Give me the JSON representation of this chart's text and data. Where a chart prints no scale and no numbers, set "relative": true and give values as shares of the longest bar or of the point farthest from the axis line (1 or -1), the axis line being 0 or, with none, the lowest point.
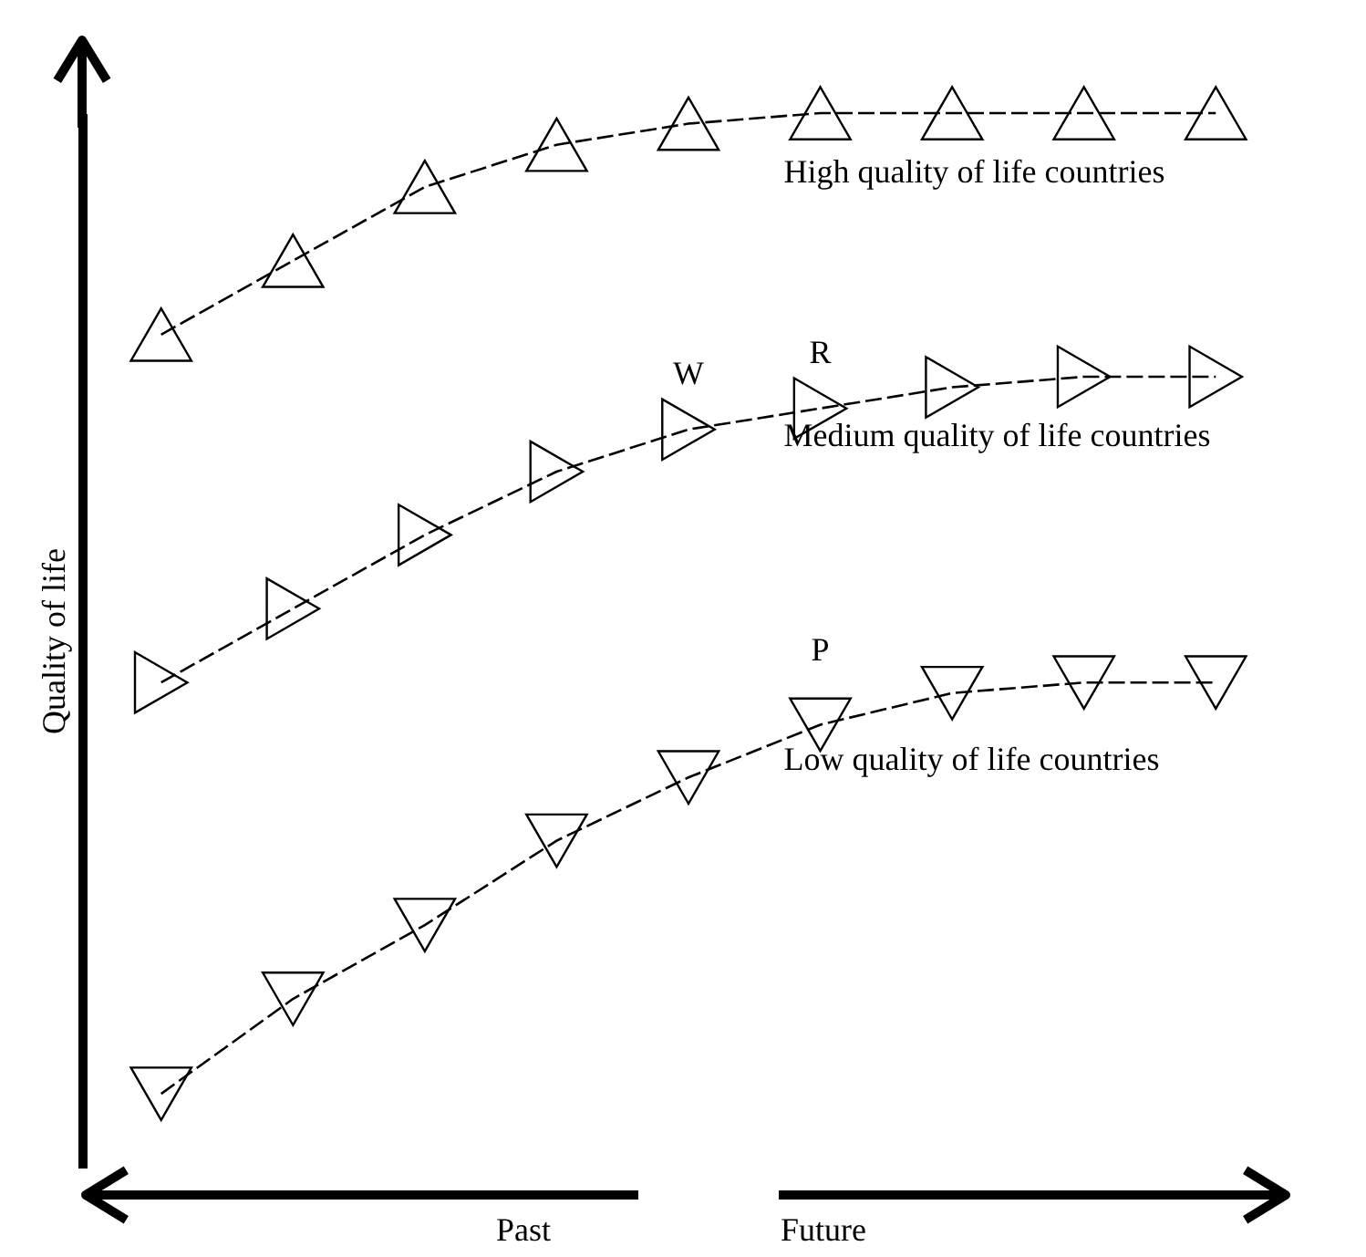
{
  "chart_data": {
    "type": "line",
    "relative": true,
    "ylabel": "Quality of life",
    "marker": "triangle",
    "line_style": "dashed",
    "categories": [
      null,
      null,
      null,
      null,
      null,
      null,
      null,
      null,
      null
    ],
    "series": [
      {
        "name": "High quality of life countries",
        "color": "#000000",
        "values": [
          0.79,
          0.86,
          0.93,
          0.97,
          0.99,
          1,
          1,
          1,
          1
        ]
      },
      {
        "name": "Medium quality of life countries",
        "color": "#000000",
        "values": [
          0.46,
          0.53,
          0.6,
          0.66,
          0.7,
          0.72,
          0.74,
          0.75,
          0.75
        ]
      },
      {
        "name": "Low quality of life countries",
        "color": "#000000",
        "values": [
          0.07,
          0.16,
          0.23,
          0.31,
          0.37,
          0.42,
          0.45,
          0.46,
          0.46
        ]
      }
    ],
    "annotations": [
      "W",
      "R",
      "P",
      "Past",
      "Future"
    ]
  }
}
